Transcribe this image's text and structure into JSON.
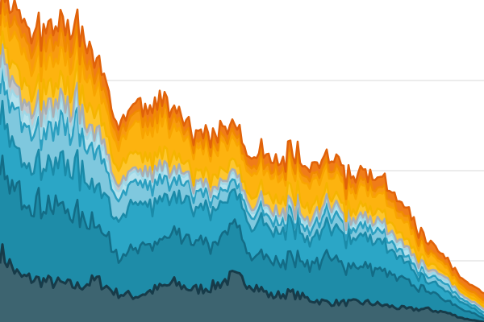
{
  "chart_data": {
    "type": "area",
    "stacked": true,
    "title": "",
    "xlabel": "",
    "ylabel": "",
    "grid": true,
    "legend": "none",
    "x_range": [
      0,
      100
    ],
    "ylim": [
      0,
      100
    ],
    "gridlines_y": [
      19,
      47,
      75
    ],
    "x": [
      0,
      4,
      8,
      12,
      16,
      20,
      24,
      28,
      32,
      36,
      40,
      44,
      48,
      52,
      56,
      60,
      64,
      68,
      72,
      76,
      80,
      84,
      88,
      92,
      96,
      100
    ],
    "series": [
      {
        "color": "#3d6470",
        "outline": "#173b49",
        "values": [
          22,
          14,
          13,
          12,
          11,
          13,
          9,
          8,
          10,
          12,
          10,
          11,
          14,
          12,
          8,
          9,
          7,
          6,
          6,
          6,
          5,
          4,
          4,
          3,
          1,
          0
        ]
      },
      {
        "color": "#1e8ca8",
        "outline": "#136c86",
        "values": [
          24,
          25,
          24,
          23,
          22,
          18,
          13,
          14,
          14,
          14,
          15,
          13,
          15,
          10,
          11,
          11,
          11,
          14,
          11,
          11,
          10,
          8,
          6,
          4,
          3,
          1
        ]
      },
      {
        "color": "#2ba6c6",
        "outline": "#1a8aa8",
        "values": [
          15,
          12,
          14,
          14,
          14,
          12,
          11,
          13,
          12,
          12,
          10,
          11,
          9,
          10,
          10,
          11,
          8,
          9,
          9,
          9,
          8,
          5,
          3,
          3,
          2,
          1
        ]
      },
      {
        "color": "#7fc8de",
        "outline": "#2b9fc0",
        "values": [
          10,
          11,
          11,
          12,
          12,
          11,
          7,
          6,
          6,
          5,
          5,
          4,
          3,
          4,
          3,
          3,
          3,
          4,
          3,
          3,
          3,
          2,
          2,
          2,
          1,
          1
        ]
      },
      {
        "color": "#b5e2ed",
        "outline": "#9fd7e6",
        "values": [
          4,
          4,
          4,
          4,
          4,
          4,
          3,
          3,
          3,
          3,
          2,
          2,
          2,
          2,
          2,
          2,
          2,
          2,
          2,
          2,
          2,
          2,
          1,
          1,
          1,
          1
        ]
      },
      {
        "color": "#c3c7cb",
        "outline": "#a9aeb3",
        "values": [
          5,
          3,
          4,
          3,
          3,
          2,
          2,
          1,
          1,
          1,
          1,
          1,
          1,
          1,
          1,
          1,
          1,
          1,
          1,
          1,
          1,
          1,
          1,
          1,
          0,
          0
        ]
      },
      {
        "color": "#fdc62f",
        "outline": "#f5b400",
        "values": [
          4,
          6,
          6,
          6,
          6,
          6,
          5,
          5,
          4,
          4,
          3,
          4,
          3,
          3,
          4,
          4,
          4,
          3,
          3,
          3,
          3,
          2,
          2,
          1,
          1,
          1
        ]
      },
      {
        "color": "#fdb30f",
        "outline": "#f8a400",
        "values": [
          6,
          10,
          8,
          9,
          8,
          8,
          7,
          9,
          9,
          8,
          8,
          8,
          7,
          7,
          7,
          7,
          7,
          6,
          6,
          6,
          5,
          5,
          3,
          2,
          1,
          1
        ]
      },
      {
        "color": "#f89a10",
        "outline": "#f08a00",
        "values": [
          3,
          5,
          5,
          5,
          5,
          4,
          3,
          3,
          3,
          3,
          2,
          2,
          2,
          2,
          2,
          2,
          2,
          2,
          2,
          2,
          2,
          2,
          1,
          1,
          1,
          1
        ]
      },
      {
        "color": "#f07c18",
        "outline": "#e0620a",
        "values": [
          4,
          5,
          5,
          5,
          5,
          5,
          3,
          3,
          4,
          3,
          3,
          3,
          3,
          3,
          3,
          3,
          3,
          3,
          3,
          3,
          3,
          3,
          3,
          2,
          2,
          2
        ]
      }
    ]
  }
}
